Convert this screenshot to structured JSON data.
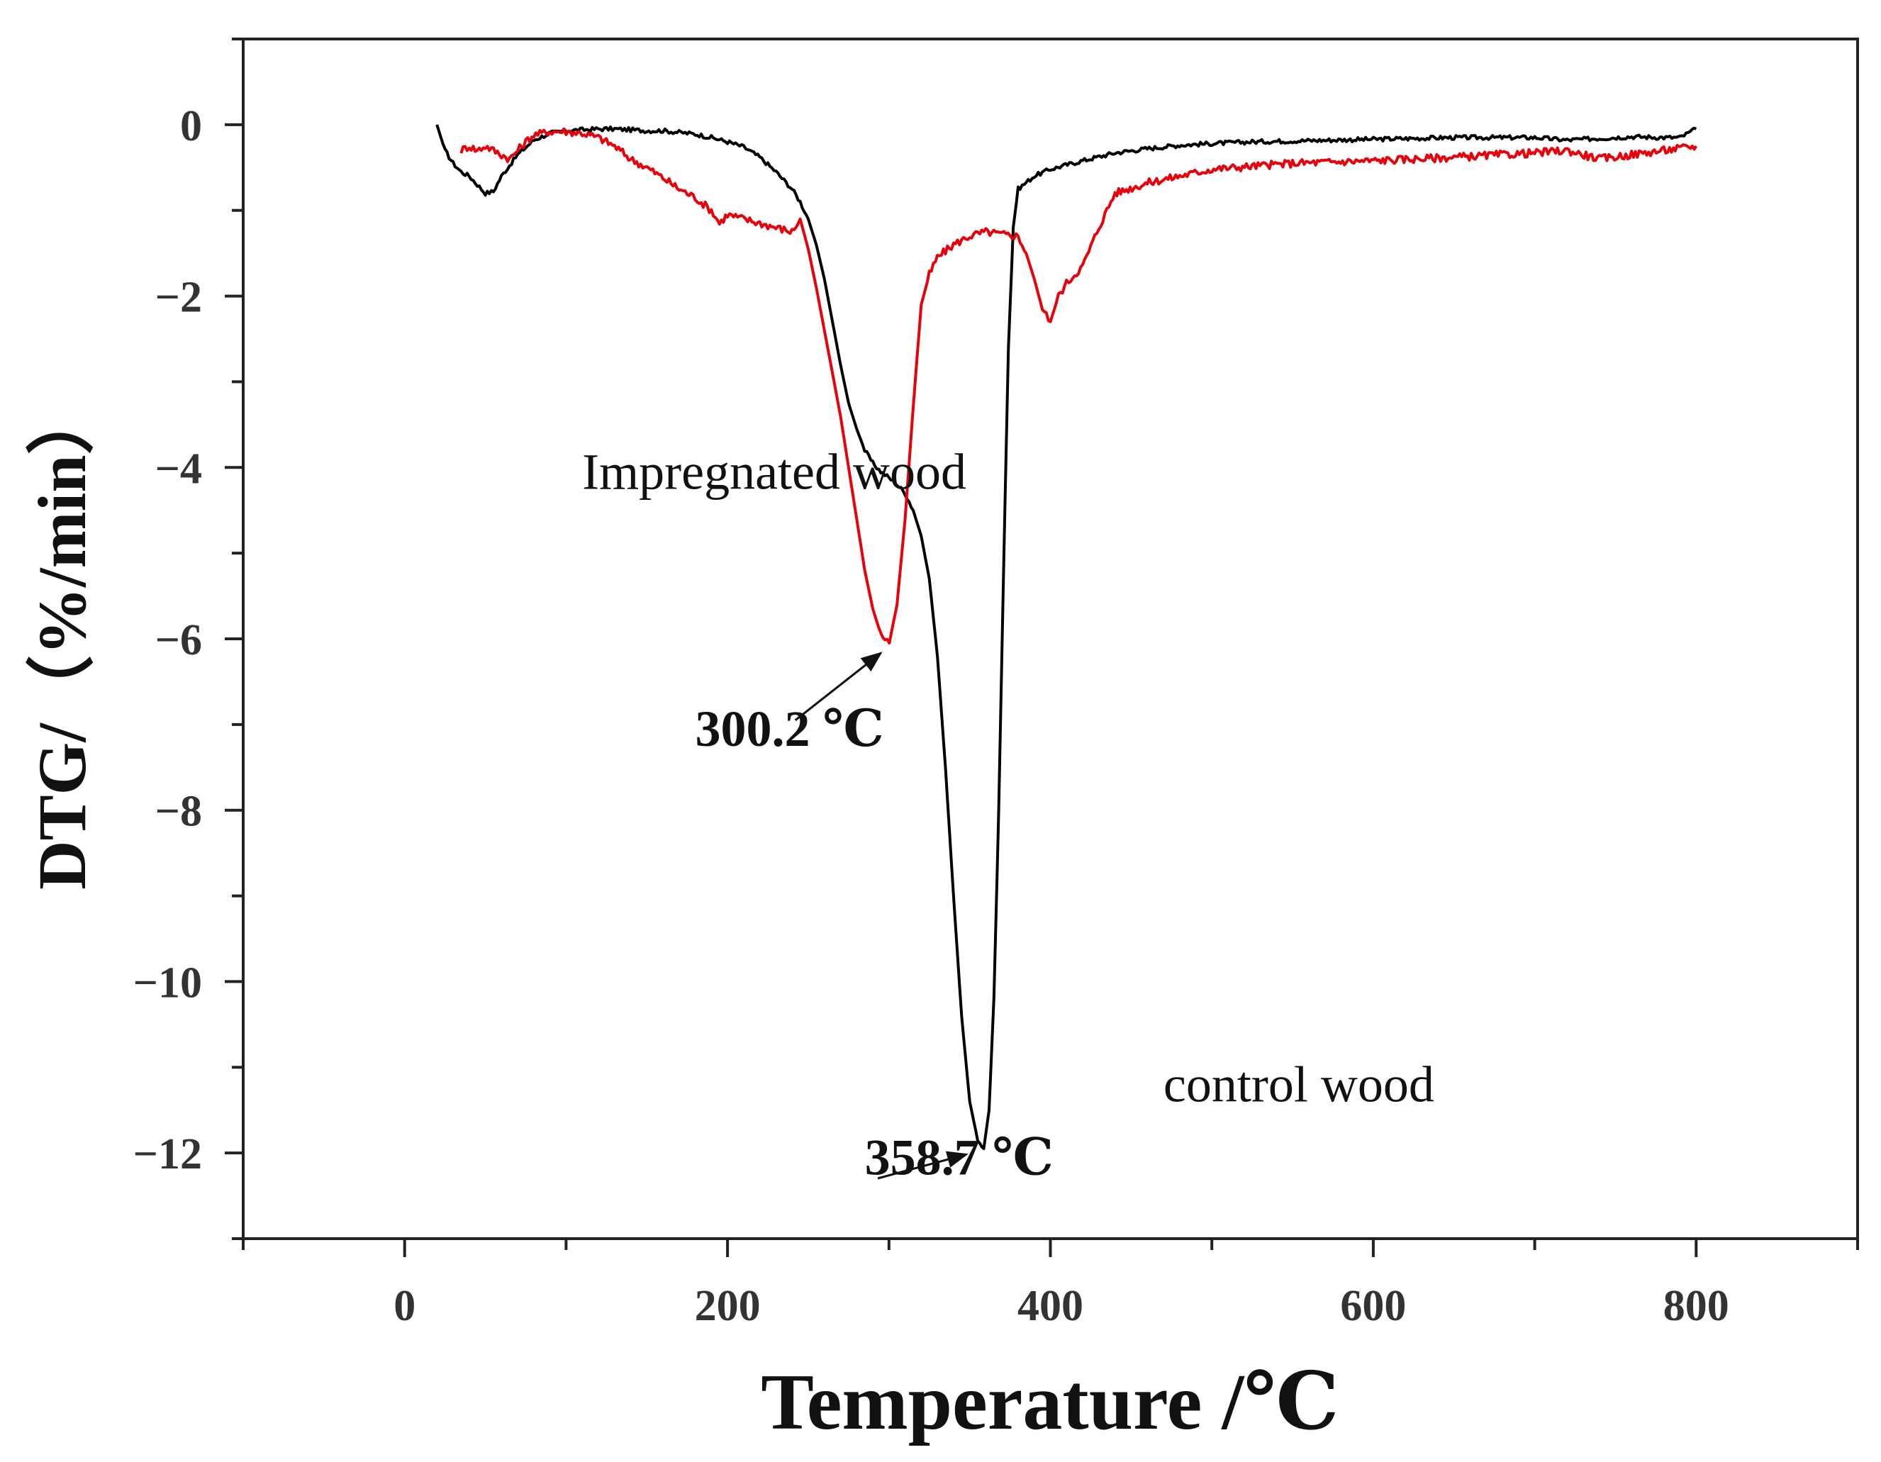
{
  "chart_data": {
    "type": "line",
    "title": "",
    "xlabel": "Temperature /℃",
    "ylabel": "DTG/（%/min）",
    "xlim": [
      -100,
      900
    ],
    "ylim": [
      -13,
      1
    ],
    "grid": false,
    "x_ticks": [
      0,
      200,
      400,
      600,
      800
    ],
    "x_tick_labels": [
      "0",
      "200",
      "400",
      "600",
      "800"
    ],
    "y_ticks": [
      0,
      -2,
      -4,
      -6,
      -8,
      -10,
      -12
    ],
    "y_tick_labels": [
      "0",
      "−2",
      "−4",
      "−6",
      "−8",
      "−10",
      "−12"
    ],
    "colors": {
      "control": "#000000",
      "impregnated": "#e8000b",
      "axis": "#222222"
    },
    "series": [
      {
        "name": "control wood",
        "color": "#000000",
        "x": [
          20,
          25,
          30,
          35,
          40,
          45,
          50,
          55,
          60,
          70,
          80,
          90,
          100,
          110,
          120,
          130,
          140,
          150,
          160,
          170,
          180,
          190,
          200,
          210,
          220,
          230,
          240,
          245,
          250,
          255,
          260,
          265,
          270,
          275,
          280,
          285,
          290,
          295,
          300,
          305,
          310,
          315,
          320,
          325,
          330,
          335,
          340,
          345,
          350,
          355,
          358.7,
          362,
          365,
          368,
          371,
          374,
          377,
          380,
          390,
          400,
          420,
          440,
          460,
          480,
          500,
          525,
          550,
          600,
          650,
          700,
          720,
          740,
          760,
          780,
          790,
          800
        ],
        "y": [
          0.0,
          -0.3,
          -0.45,
          -0.55,
          -0.6,
          -0.7,
          -0.8,
          -0.78,
          -0.6,
          -0.35,
          -0.18,
          -0.1,
          -0.07,
          -0.06,
          -0.05,
          -0.05,
          -0.06,
          -0.07,
          -0.07,
          -0.09,
          -0.11,
          -0.15,
          -0.2,
          -0.26,
          -0.38,
          -0.55,
          -0.75,
          -0.9,
          -1.1,
          -1.4,
          -1.8,
          -2.3,
          -2.8,
          -3.25,
          -3.55,
          -3.8,
          -3.95,
          -4.05,
          -4.12,
          -4.2,
          -4.3,
          -4.5,
          -4.8,
          -5.3,
          -6.2,
          -7.5,
          -9.0,
          -10.4,
          -11.4,
          -11.85,
          -11.95,
          -11.5,
          -10.2,
          -8.0,
          -5.2,
          -2.6,
          -1.2,
          -0.75,
          -0.6,
          -0.52,
          -0.42,
          -0.33,
          -0.28,
          -0.24,
          -0.22,
          -0.2,
          -0.19,
          -0.17,
          -0.15,
          -0.15,
          -0.18,
          -0.16,
          -0.14,
          -0.15,
          -0.15,
          -0.05
        ]
      },
      {
        "name": "Impregnated wood",
        "color": "#e8000b",
        "x": [
          35,
          40,
          45,
          50,
          55,
          60,
          65,
          70,
          75,
          80,
          90,
          100,
          110,
          120,
          130,
          140,
          150,
          160,
          170,
          180,
          190,
          195,
          200,
          210,
          220,
          230,
          240,
          245,
          250,
          255,
          260,
          265,
          270,
          275,
          280,
          285,
          290,
          295,
          300.2,
          305,
          310,
          315,
          320,
          325,
          330,
          340,
          350,
          360,
          370,
          380,
          385,
          390,
          395,
          400,
          405,
          410,
          420,
          430,
          440,
          460,
          480,
          500,
          550,
          600,
          650,
          700,
          720,
          740,
          760,
          780,
          800
        ],
        "y": [
          -0.3,
          -0.25,
          -0.3,
          -0.25,
          -0.3,
          -0.35,
          -0.4,
          -0.3,
          -0.2,
          -0.12,
          -0.08,
          -0.08,
          -0.1,
          -0.15,
          -0.25,
          -0.4,
          -0.5,
          -0.62,
          -0.75,
          -0.85,
          -1.0,
          -1.15,
          -1.05,
          -1.1,
          -1.15,
          -1.2,
          -1.25,
          -1.1,
          -1.45,
          -1.9,
          -2.4,
          -2.9,
          -3.4,
          -4.0,
          -4.6,
          -5.2,
          -5.65,
          -5.95,
          -6.05,
          -5.6,
          -4.6,
          -3.3,
          -2.1,
          -1.75,
          -1.55,
          -1.4,
          -1.3,
          -1.25,
          -1.28,
          -1.3,
          -1.5,
          -1.8,
          -2.15,
          -2.3,
          -2.0,
          -1.85,
          -1.65,
          -1.2,
          -0.8,
          -0.68,
          -0.6,
          -0.52,
          -0.45,
          -0.42,
          -0.38,
          -0.33,
          -0.3,
          -0.4,
          -0.35,
          -0.3,
          -0.25
        ]
      }
    ],
    "annotations": [
      {
        "text": "Impregnated wood",
        "x": 110,
        "y": -4.25
      },
      {
        "text": "300.2 ℃",
        "x": 180,
        "y": -7.25,
        "arrow_to": [
          300.2,
          -6.05
        ]
      },
      {
        "text": "358.7 ℃",
        "x": 285,
        "y": -12.25,
        "arrow_to": [
          355,
          -12.0
        ]
      },
      {
        "text": "control wood",
        "x": 470,
        "y": -11.4
      }
    ]
  }
}
